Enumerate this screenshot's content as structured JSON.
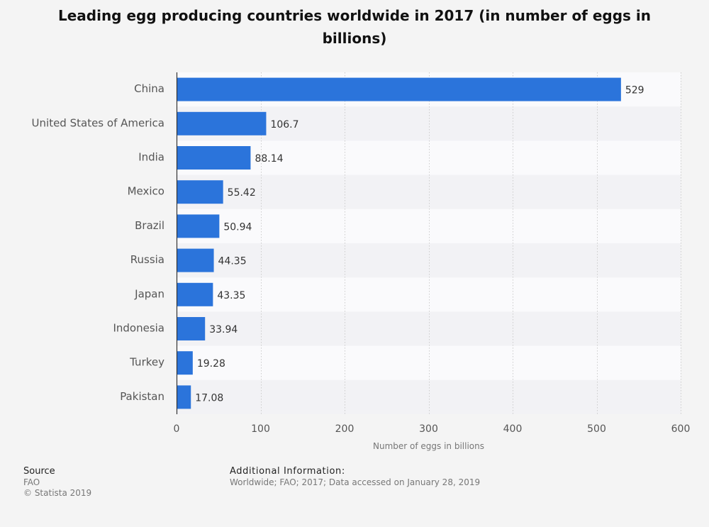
{
  "chart_data": {
    "type": "bar",
    "orientation": "horizontal",
    "title": "Leading egg producing countries worldwide in 2017 (in number of eggs in billions)",
    "categories": [
      "China",
      "United States of America",
      "India",
      "Mexico",
      "Brazil",
      "Russia",
      "Japan",
      "Indonesia",
      "Turkey",
      "Pakistan"
    ],
    "values": [
      529,
      106.7,
      88.14,
      55.42,
      50.94,
      44.35,
      43.35,
      33.94,
      19.28,
      17.08
    ],
    "value_labels": [
      "529",
      "106.7",
      "88.14",
      "55.42",
      "50.94",
      "44.35",
      "43.35",
      "33.94",
      "19.28",
      "17.08"
    ],
    "xlabel": "Number of eggs in billions",
    "ylabel": "",
    "xlim": [
      0,
      600
    ],
    "xticks": [
      0,
      100,
      200,
      300,
      400,
      500,
      600
    ],
    "xtick_labels": [
      "0",
      "100",
      "200",
      "300",
      "400",
      "500",
      "600"
    ],
    "grid": true,
    "legend": "none"
  },
  "colors": {
    "bar": "#2b74db",
    "page_background": "#f4f4f4",
    "band_light": "#fafafc",
    "band_dark": "#f2f2f5",
    "grid": "#cccccc",
    "axis": "#333333",
    "category_label": "#555555",
    "value_label": "#333333",
    "tick_label": "#555555",
    "axis_title": "#777777"
  },
  "footer": {
    "source_heading": "Source",
    "source_name": "FAO",
    "copyright": "© Statista 2019",
    "additional_heading": "Additional Information:",
    "additional_text": "Worldwide; FAO; 2017; Data accessed on January 28, 2019"
  }
}
